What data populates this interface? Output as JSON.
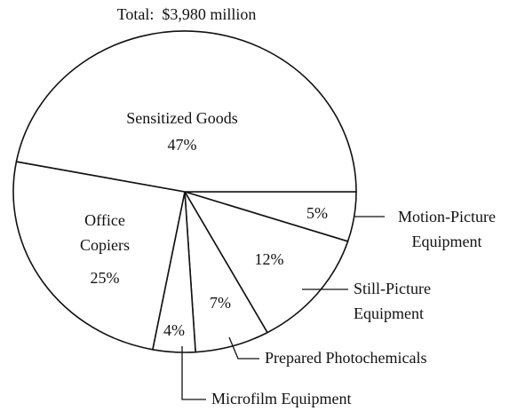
{
  "chart_data": {
    "type": "pie",
    "title": "Total:  $3,980 million",
    "categories": [
      "Motion-Picture Equipment",
      "Still-Picture Equipment",
      "Prepared Photochemicals",
      "Microfilm Equipment",
      "Office Copiers",
      "Sensitized Goods"
    ],
    "values": [
      5,
      12,
      7,
      4,
      25,
      47
    ],
    "value_labels": [
      "5%",
      "12%",
      "7%",
      "4%",
      "25%",
      "47%"
    ],
    "color": "#ffffff"
  }
}
